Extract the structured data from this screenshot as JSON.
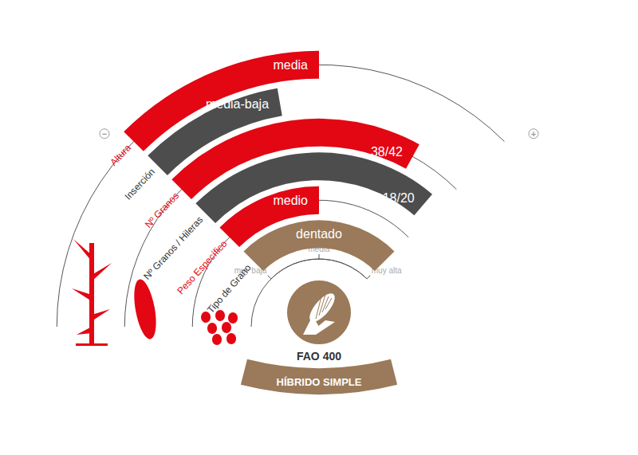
{
  "chart_data": {
    "type": "bar",
    "categories": [
      "Altura",
      "Inserción",
      "Nº Granos",
      "Nº Granos / Hileras",
      "Peso Específico",
      "Tipo de Grano"
    ],
    "values": [
      50,
      39,
      82,
      95,
      50,
      100
    ],
    "value_labels": [
      "media",
      "media-baja",
      "38/42",
      "18/20",
      "medio",
      "dentado"
    ],
    "colors": [
      "#e30613",
      "#4d4d4d",
      "#e30613",
      "#4d4d4d",
      "#e30613",
      "#9a7a5a"
    ],
    "xlim": [
      0,
      100
    ],
    "xticks": [
      {
        "value": 0,
        "label": "muy baja"
      },
      {
        "value": 50,
        "label": "media"
      },
      {
        "value": 100,
        "label": "muy alta"
      }
    ],
    "data_labels": true,
    "annotations": {
      "min": "−",
      "max": "+",
      "fao": "FAO 400",
      "hybrid": "HÍBRIDO SIMPLE"
    }
  }
}
